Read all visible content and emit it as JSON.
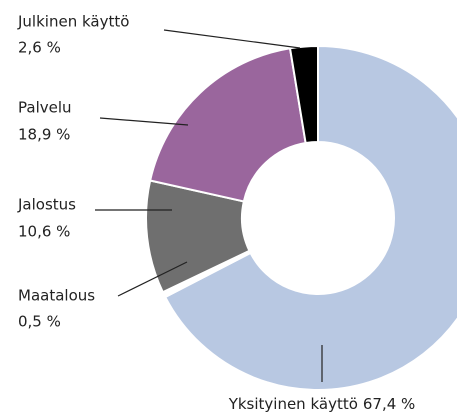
{
  "chart_data": {
    "type": "donut",
    "categories": [
      "Yksityinen käyttö",
      "Maatalous",
      "Jalostus",
      "Palvelu",
      "Julkinen käyttö"
    ],
    "values": [
      67.4,
      0.5,
      10.6,
      18.9,
      2.6
    ],
    "value_labels": [
      "67,4 %",
      "0,5 %",
      "10,6 %",
      "18,9 %",
      "2,6 %"
    ],
    "colors": [
      "#b8c8e2",
      "#ffffff",
      "#6f6f6f",
      "#9a669d",
      "#000000"
    ]
  }
}
